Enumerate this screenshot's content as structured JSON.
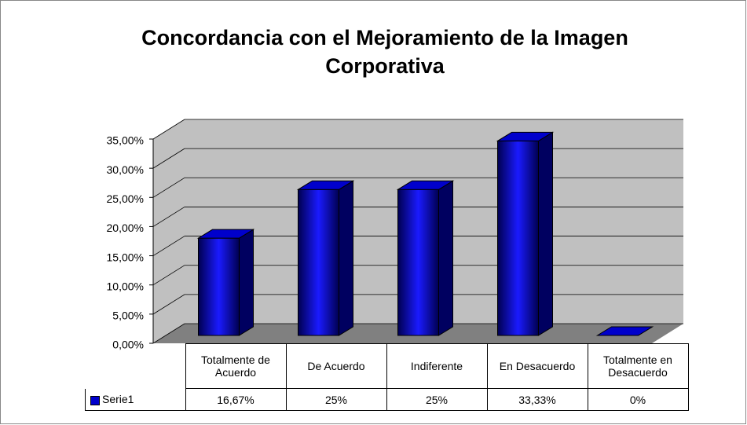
{
  "chart_data": {
    "type": "bar",
    "title": "Concordancia con el Mejoramiento de la Imagen Corporativa",
    "categories": [
      "Totalmente de Acuerdo",
      "De Acuerdo",
      "Indiferente",
      "En Desacuerdo",
      "Totalmente en Desacuerdo"
    ],
    "series": [
      {
        "name": "Serie1",
        "color": "#0000cc",
        "values": [
          16.67,
          25,
          25,
          33.33,
          0
        ],
        "value_labels": [
          "16,67%",
          "25%",
          "25%",
          "33,33%",
          "0%"
        ]
      }
    ],
    "ylim": [
      0,
      35
    ],
    "yticks": [
      {
        "value": 0,
        "label": "0,00%"
      },
      {
        "value": 5,
        "label": "5,00%"
      },
      {
        "value": 10,
        "label": "10,00%"
      },
      {
        "value": 15,
        "label": "15,00%"
      },
      {
        "value": 20,
        "label": "20,00%"
      },
      {
        "value": 25,
        "label": "25,00%"
      },
      {
        "value": 30,
        "label": "30,00%"
      },
      {
        "value": 35,
        "label": "35,00%"
      }
    ],
    "grid": true
  }
}
